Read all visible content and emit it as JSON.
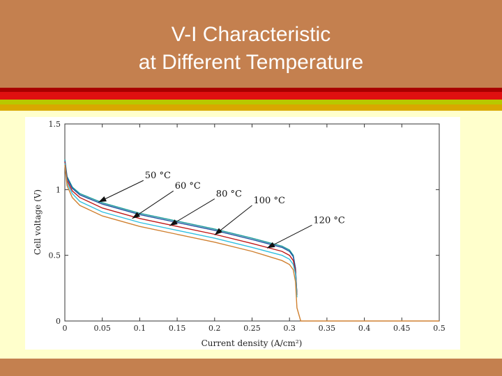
{
  "slide": {
    "title_line1": "V-I Characteristic",
    "title_line2": "at Different Temperature",
    "colors": {
      "header": "#c4804f",
      "background": "#ffffcc",
      "stripe_1": "#a80000",
      "stripe_2": "#e01010",
      "stripe_3": "#b8c800",
      "stripe_4": "#d8a800"
    }
  },
  "chart_data": {
    "type": "line",
    "title": "",
    "xlabel": "Current density (A/cm²)",
    "ylabel": "Cell voltage (V)",
    "xlim": [
      0,
      0.5
    ],
    "ylim": [
      0,
      1.5
    ],
    "xticks": [
      "0",
      "0.05",
      "0.1",
      "0.15",
      "0.2",
      "0.25",
      "0.3",
      "0.35",
      "0.4",
      "0.45",
      "0.5"
    ],
    "yticks": [
      "0",
      "0.5",
      "1",
      "1.5"
    ],
    "grid": false,
    "series": [
      {
        "name": "50 °C",
        "color": "#1a9a9a",
        "x": [
          0,
          0.003,
          0.01,
          0.02,
          0.05,
          0.1,
          0.15,
          0.2,
          0.25,
          0.29,
          0.3,
          0.305,
          0.308,
          0.31
        ],
        "y": [
          1.23,
          1.1,
          1.02,
          0.97,
          0.9,
          0.82,
          0.76,
          0.7,
          0.63,
          0.57,
          0.54,
          0.5,
          0.4,
          0.2
        ]
      },
      {
        "name": "60 °C",
        "color": "#2050a0",
        "x": [
          0,
          0.003,
          0.01,
          0.02,
          0.05,
          0.1,
          0.15,
          0.2,
          0.25,
          0.29,
          0.3,
          0.305,
          0.308,
          0.31
        ],
        "y": [
          1.22,
          1.09,
          1.01,
          0.96,
          0.89,
          0.81,
          0.75,
          0.69,
          0.62,
          0.56,
          0.53,
          0.49,
          0.4,
          0.2
        ]
      },
      {
        "name": "80 °C",
        "color": "#c01818",
        "x": [
          0,
          0.003,
          0.01,
          0.02,
          0.05,
          0.1,
          0.15,
          0.2,
          0.25,
          0.29,
          0.3,
          0.305,
          0.308,
          0.31
        ],
        "y": [
          1.21,
          1.07,
          0.99,
          0.94,
          0.86,
          0.78,
          0.72,
          0.66,
          0.59,
          0.53,
          0.5,
          0.46,
          0.38,
          0.2
        ]
      },
      {
        "name": "100 °C",
        "color": "#30c0e0",
        "x": [
          0,
          0.003,
          0.01,
          0.02,
          0.05,
          0.1,
          0.15,
          0.2,
          0.25,
          0.29,
          0.3,
          0.305,
          0.308,
          0.31
        ],
        "y": [
          1.2,
          1.05,
          0.97,
          0.91,
          0.83,
          0.75,
          0.69,
          0.63,
          0.56,
          0.5,
          0.47,
          0.43,
          0.36,
          0.18
        ]
      },
      {
        "name": "120 °C",
        "color": "#d08030",
        "x": [
          0,
          0.003,
          0.01,
          0.02,
          0.05,
          0.1,
          0.15,
          0.2,
          0.25,
          0.29,
          0.3,
          0.305,
          0.308,
          0.31,
          0.315,
          0.5
        ],
        "y": [
          1.19,
          1.03,
          0.94,
          0.88,
          0.8,
          0.72,
          0.66,
          0.6,
          0.53,
          0.46,
          0.43,
          0.39,
          0.3,
          0.1,
          0.0,
          0.0
        ]
      }
    ],
    "annotations": [
      {
        "text": "50 °C",
        "label_x": 0.105,
        "label_y": 1.07,
        "arrow_x": 0.045,
        "arrow_y": 0.905
      },
      {
        "text": "60 °C",
        "label_x": 0.145,
        "label_y": 0.99,
        "arrow_x": 0.09,
        "arrow_y": 0.78
      },
      {
        "text": "80 °C",
        "label_x": 0.2,
        "label_y": 0.93,
        "arrow_x": 0.14,
        "arrow_y": 0.725
      },
      {
        "text": "100 °C",
        "label_x": 0.25,
        "label_y": 0.88,
        "arrow_x": 0.2,
        "arrow_y": 0.655
      },
      {
        "text": "120 °C",
        "label_x": 0.33,
        "label_y": 0.73,
        "arrow_x": 0.27,
        "arrow_y": 0.555
      }
    ]
  }
}
